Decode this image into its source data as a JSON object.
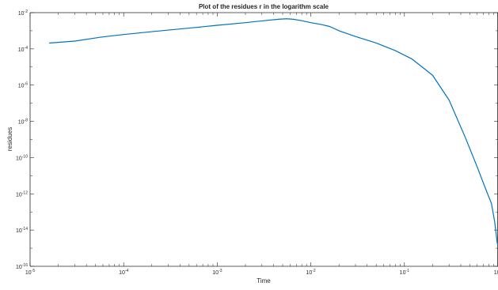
{
  "chart_data": {
    "type": "line",
    "title": "Plot of the residues r in the logarithm scale",
    "xlabel": "Time",
    "ylabel": "residues",
    "xscale": "log",
    "yscale": "log",
    "xlim": [
      1e-05,
      1
    ],
    "ylim": [
      1e-16,
      0.01
    ],
    "grid": false,
    "legend": "none",
    "line_color": "#0072bd",
    "x_ticks": [
      {
        "value": 1e-05,
        "base": "10",
        "exp": "-5"
      },
      {
        "value": 0.0001,
        "base": "10",
        "exp": "-4"
      },
      {
        "value": 0.001,
        "base": "10",
        "exp": "-3"
      },
      {
        "value": 0.01,
        "base": "10",
        "exp": "-2"
      },
      {
        "value": 0.1,
        "base": "10",
        "exp": "-1"
      },
      {
        "value": 1,
        "base": "10",
        "exp": "0"
      }
    ],
    "y_ticks": [
      {
        "value": 1e-16,
        "base": "10",
        "exp": "-16"
      },
      {
        "value": 1e-14,
        "base": "10",
        "exp": "-14"
      },
      {
        "value": 1e-12,
        "base": "10",
        "exp": "-12"
      },
      {
        "value": 1e-10,
        "base": "10",
        "exp": "-10"
      },
      {
        "value": 1e-08,
        "base": "10",
        "exp": "-8"
      },
      {
        "value": 1e-06,
        "base": "10",
        "exp": "-6"
      },
      {
        "value": 0.0001,
        "base": "10",
        "exp": "-4"
      },
      {
        "value": 0.01,
        "base": "10",
        "exp": "-2"
      }
    ],
    "series": [
      {
        "x": [
          1.6e-05,
          3e-05,
          6e-05,
          0.0001,
          0.0002,
          0.0005,
          0.001,
          0.002,
          0.003,
          0.0045,
          0.0055,
          0.0065,
          0.008,
          0.01,
          0.013,
          0.016,
          0.02,
          0.03,
          0.05,
          0.08,
          0.12,
          0.2,
          0.3,
          0.45,
          0.6,
          0.75,
          0.85,
          0.92,
          0.96,
          0.98,
          1.0
        ],
        "y": [
          0.00021,
          0.00027,
          0.00046,
          0.00062,
          0.00089,
          0.0014,
          0.002,
          0.0028,
          0.0035,
          0.0043,
          0.0046,
          0.0043,
          0.0036,
          0.0028,
          0.0022,
          0.0017,
          0.001,
          0.00048,
          0.00021,
          8e-05,
          2.8e-05,
          3.5e-06,
          1.5e-07,
          1.2e-09,
          3e-11,
          1.5e-12,
          3e-13,
          3e-14,
          5e-15,
          2e-15,
          1.5e-15
        ]
      }
    ]
  }
}
